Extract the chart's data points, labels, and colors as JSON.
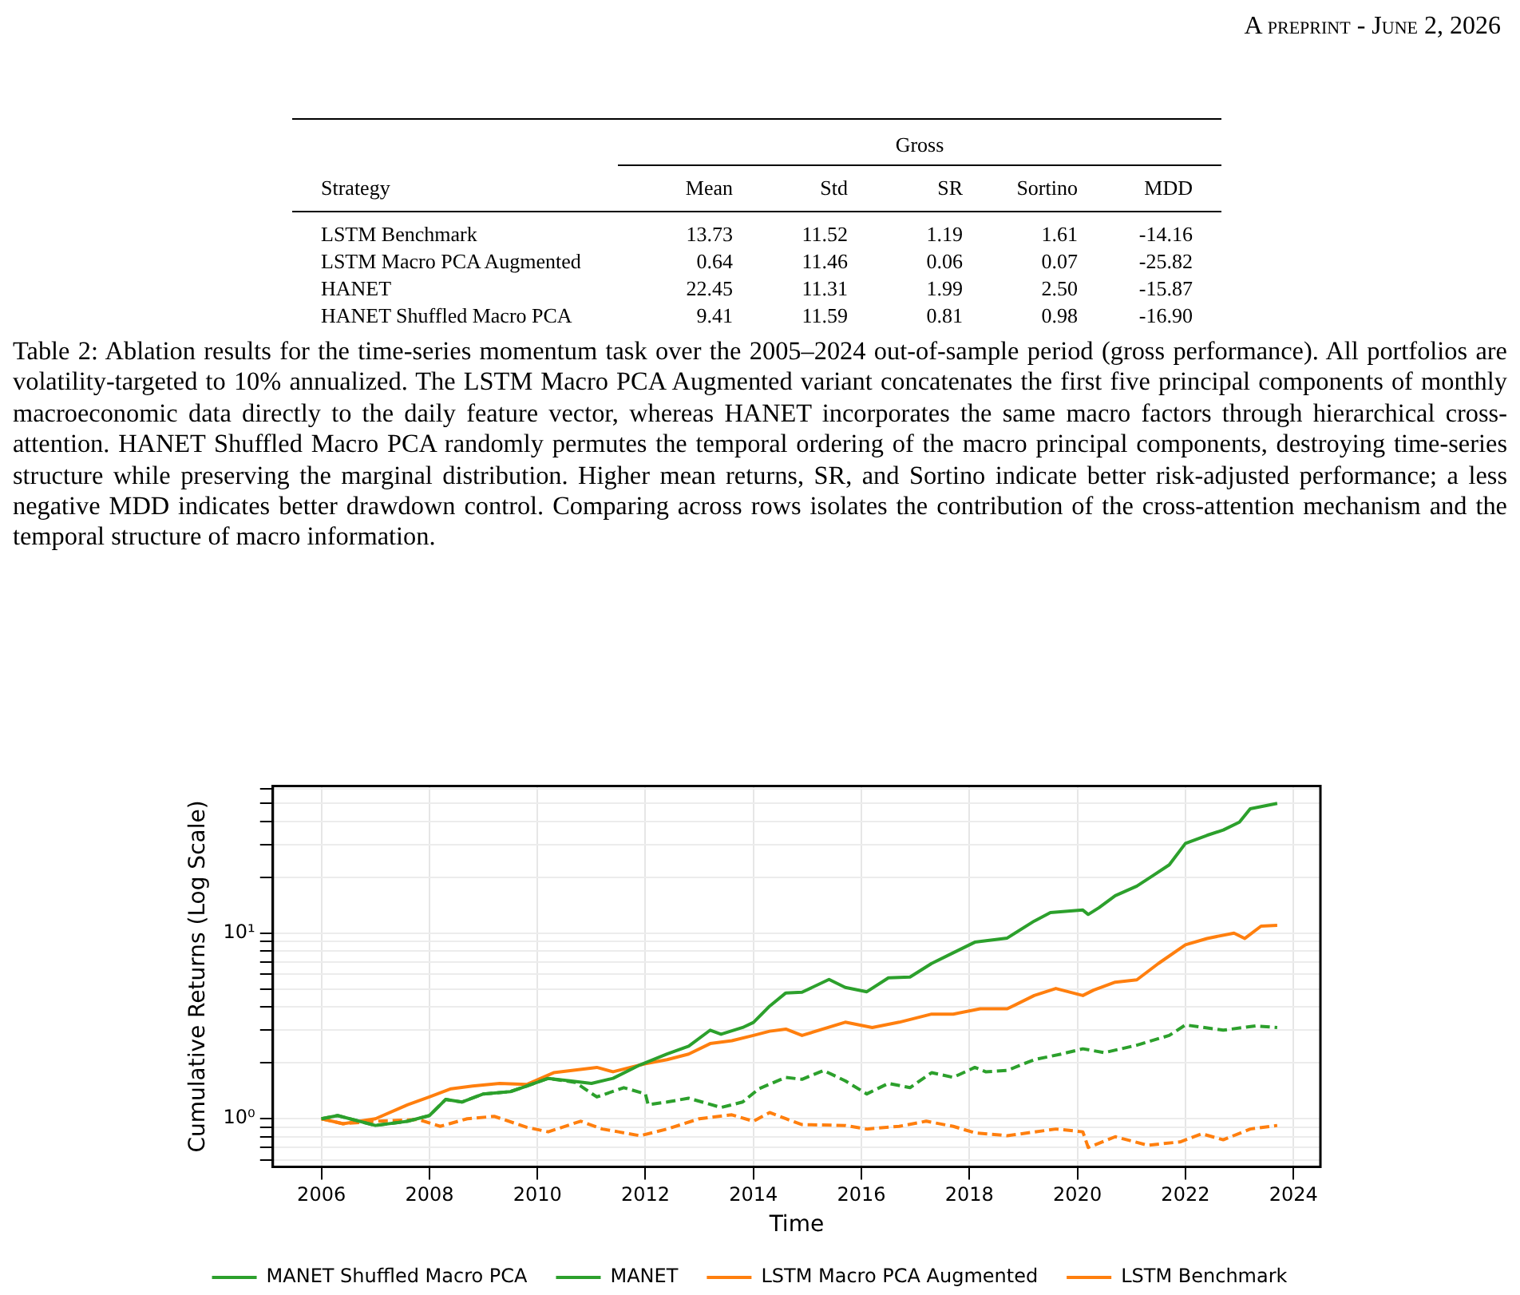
{
  "chart_data": [
    {
      "type": "other",
      "title": "Gross",
      "ylabel": "Strategy",
      "categories": [
        "LSTM Benchmark",
        "LSTM Macro PCA Augmented",
        "HANET",
        "HANET Shuffled Macro PCA"
      ],
      "series": [
        {
          "name": "Mean",
          "values": [
            13.73,
            0.64,
            22.45,
            9.41
          ],
          "value_labels": [
            "13.73",
            "0.64",
            "22.45",
            "9.41"
          ]
        },
        {
          "name": "Std",
          "values": [
            11.52,
            11.46,
            11.31,
            11.59
          ],
          "value_labels": [
            "11.52",
            "11.46",
            "11.31",
            "11.59"
          ]
        },
        {
          "name": "SR",
          "values": [
            1.19,
            0.06,
            1.99,
            0.81
          ],
          "value_labels": [
            "1.19",
            "0.06",
            "1.99",
            "0.81"
          ]
        },
        {
          "name": "Sortino",
          "values": [
            1.61,
            0.07,
            2.5,
            0.98
          ],
          "value_labels": [
            "1.61",
            "0.07",
            "2.50",
            "0.98"
          ]
        },
        {
          "name": "MDD",
          "values": [
            -14.16,
            -25.82,
            -15.87,
            -16.9
          ],
          "value_labels": [
            "-14.16",
            "-25.82",
            "-15.87",
            "-16.90"
          ]
        }
      ],
      "annotations": [
        "A preprint - June 2, 2026",
        "Table 2: Ablation results for the time-series momentum task over the 2005–2024 out-of-sample period (gross performance). All portfolios are volatility-targeted to 10% annualized. The LSTM Macro PCA Augmented variant concatenates the first five principal components of monthly macroeconomic data directly to the daily feature vector, whereas HANET incorporates the same macro factors through hierarchical cross-attention. HANET Shuffled Macro PCA randomly permutes the temporal ordering of the macro principal components, destroying time-series structure while preserving the marginal distribution. Higher mean returns, SR, and Sortino indicate better risk-adjusted performance; a less negative MDD indicates better drawdown control. Comparing across rows isolates the contribution of the cross-attention mechanism and the temporal structure of macro information."
      ]
    },
    {
      "type": "line",
      "xlabel": "Time",
      "ylabel": "Cumulative Returns (Log Scale)",
      "log": "y",
      "xlim": [
        2005.1,
        2024.5
      ],
      "xticks": [
        2006,
        2008,
        2010,
        2012,
        2014,
        2016,
        2018,
        2020,
        2022,
        2024
      ],
      "ylim": [
        0.55,
        62
      ],
      "yticks": [
        {
          "value": 0.6,
          "label": null
        },
        {
          "value": 0.7,
          "label": null
        },
        {
          "value": 0.8,
          "label": null
        },
        {
          "value": 0.9,
          "label": null
        },
        {
          "value": 1,
          "label": "10⁰"
        },
        {
          "value": 2,
          "label": null
        },
        {
          "value": 3,
          "label": null
        },
        {
          "value": 4,
          "label": null
        },
        {
          "value": 5,
          "label": null
        },
        {
          "value": 6,
          "label": null
        },
        {
          "value": 7,
          "label": null
        },
        {
          "value": 8,
          "label": null
        },
        {
          "value": 9,
          "label": null
        },
        {
          "value": 10,
          "label": "10¹"
        },
        {
          "value": 20,
          "label": null
        },
        {
          "value": 30,
          "label": null
        },
        {
          "value": 40,
          "label": null
        },
        {
          "value": 50,
          "label": null
        },
        {
          "value": 60,
          "label": null
        }
      ],
      "grid": true,
      "legend": "bottom",
      "series": [
        {
          "name": "MANET Shuffled Macro PCA",
          "color": "#2ca02c",
          "line_style": "dashed",
          "x": [
            2006,
            2006.3,
            2007,
            2007.6,
            2008,
            2008.3,
            2008.6,
            2009,
            2009.5,
            2009.8,
            2010.2,
            2010.7,
            2011.1,
            2011.6,
            2012,
            2012.05,
            2012.4,
            2012.8,
            2013.4,
            2013.8,
            2014.1,
            2014.6,
            2014.9,
            2015.3,
            2015.7,
            2016.1,
            2016.5,
            2016.9,
            2017.3,
            2017.7,
            2018.1,
            2018.3,
            2018.7,
            2019.2,
            2019.7,
            2020.1,
            2020.5,
            2021.1,
            2021.7,
            2022,
            2022.7,
            2023.3,
            2023.7
          ],
          "values": [
            1,
            1.04,
            0.92,
            0.97,
            1.04,
            1.27,
            1.23,
            1.36,
            1.4,
            1.5,
            1.65,
            1.57,
            1.31,
            1.47,
            1.36,
            1.19,
            1.23,
            1.29,
            1.15,
            1.23,
            1.45,
            1.67,
            1.63,
            1.82,
            1.6,
            1.36,
            1.55,
            1.47,
            1.77,
            1.67,
            1.89,
            1.79,
            1.82,
            2.08,
            2.23,
            2.38,
            2.27,
            2.49,
            2.81,
            3.2,
            3,
            3.16,
            3.1
          ]
        },
        {
          "name": "MANET",
          "color": "#2ca02c",
          "line_style": "solid",
          "x": [
            2006,
            2006.3,
            2007,
            2007.6,
            2008,
            2008.3,
            2008.6,
            2009,
            2009.5,
            2009.8,
            2010.2,
            2010.6,
            2011,
            2011.4,
            2011.9,
            2012.4,
            2012.8,
            2013.2,
            2013.4,
            2013.8,
            2014,
            2014.3,
            2014.6,
            2014.9,
            2015.4,
            2015.7,
            2016.1,
            2016.5,
            2016.9,
            2017.3,
            2017.7,
            2018.1,
            2018.7,
            2019.2,
            2019.5,
            2020.1,
            2020.2,
            2020.4,
            2020.7,
            2021.1,
            2021.4,
            2021.7,
            2022,
            2022.4,
            2022.7,
            2023,
            2023.2,
            2023.7
          ],
          "values": [
            1,
            1.04,
            0.92,
            0.97,
            1.04,
            1.27,
            1.23,
            1.36,
            1.4,
            1.5,
            1.65,
            1.6,
            1.55,
            1.65,
            1.95,
            2.23,
            2.46,
            3,
            2.85,
            3.1,
            3.3,
            4.04,
            4.76,
            4.8,
            5.63,
            5.1,
            4.83,
            5.74,
            5.8,
            6.86,
            7.83,
            8.93,
            9.4,
            11.6,
            12.9,
            13.3,
            12.6,
            13.7,
            15.9,
            17.9,
            20.4,
            23.3,
            30.4,
            33.6,
            35.9,
            39.6,
            46.7,
            49.9
          ]
        },
        {
          "name": "LSTM Macro PCA Augmented",
          "color": "#ff7f0e",
          "line_style": "dashed",
          "x": [
            2006,
            2006.4,
            2007,
            2007.8,
            2008.2,
            2008.7,
            2009.2,
            2009.8,
            2010.2,
            2010.8,
            2011.2,
            2011.5,
            2011.9,
            2012.4,
            2013,
            2013.6,
            2014,
            2014.3,
            2014.6,
            2014.9,
            2015.7,
            2016.1,
            2016.7,
            2017.2,
            2017.7,
            2018.1,
            2018.7,
            2019.6,
            2020.1,
            2020.2,
            2020.7,
            2021.3,
            2021.9,
            2022.3,
            2022.7,
            2023.2,
            2023.7
          ],
          "values": [
            1,
            0.94,
            0.97,
            0.99,
            0.91,
            1,
            1.03,
            0.9,
            0.85,
            0.97,
            0.88,
            0.85,
            0.81,
            0.88,
            1,
            1.05,
            0.97,
            1.08,
            1,
            0.93,
            0.92,
            0.88,
            0.91,
            0.97,
            0.91,
            0.84,
            0.81,
            0.88,
            0.85,
            0.7,
            0.8,
            0.72,
            0.75,
            0.83,
            0.77,
            0.88,
            0.92
          ]
        },
        {
          "name": "LSTM Benchmark",
          "color": "#ff7f0e",
          "line_style": "solid",
          "x": [
            2006,
            2006.4,
            2007,
            2007.6,
            2008,
            2008.4,
            2008.8,
            2009.3,
            2009.8,
            2010.3,
            2010.7,
            2011.1,
            2011.4,
            2012,
            2012.4,
            2012.8,
            2013.2,
            2013.6,
            2014,
            2014.3,
            2014.6,
            2014.9,
            2015.7,
            2016.2,
            2016.7,
            2017.3,
            2017.7,
            2018.2,
            2018.7,
            2019.2,
            2019.6,
            2020.1,
            2020.3,
            2020.7,
            2021.1,
            2021.5,
            2022,
            2022.4,
            2022.9,
            2023.1,
            2023.4,
            2023.7
          ],
          "values": [
            1,
            0.94,
            1,
            1.19,
            1.31,
            1.45,
            1.5,
            1.55,
            1.53,
            1.77,
            1.83,
            1.89,
            1.79,
            1.98,
            2.08,
            2.23,
            2.54,
            2.63,
            2.81,
            2.96,
            3.04,
            2.81,
            3.31,
            3.1,
            3.31,
            3.66,
            3.66,
            3.91,
            3.91,
            4.61,
            5.03,
            4.61,
            4.93,
            5.44,
            5.6,
            6.86,
            8.64,
            9.35,
            10,
            9.35,
            10.9,
            11
          ]
        }
      ]
    }
  ]
}
